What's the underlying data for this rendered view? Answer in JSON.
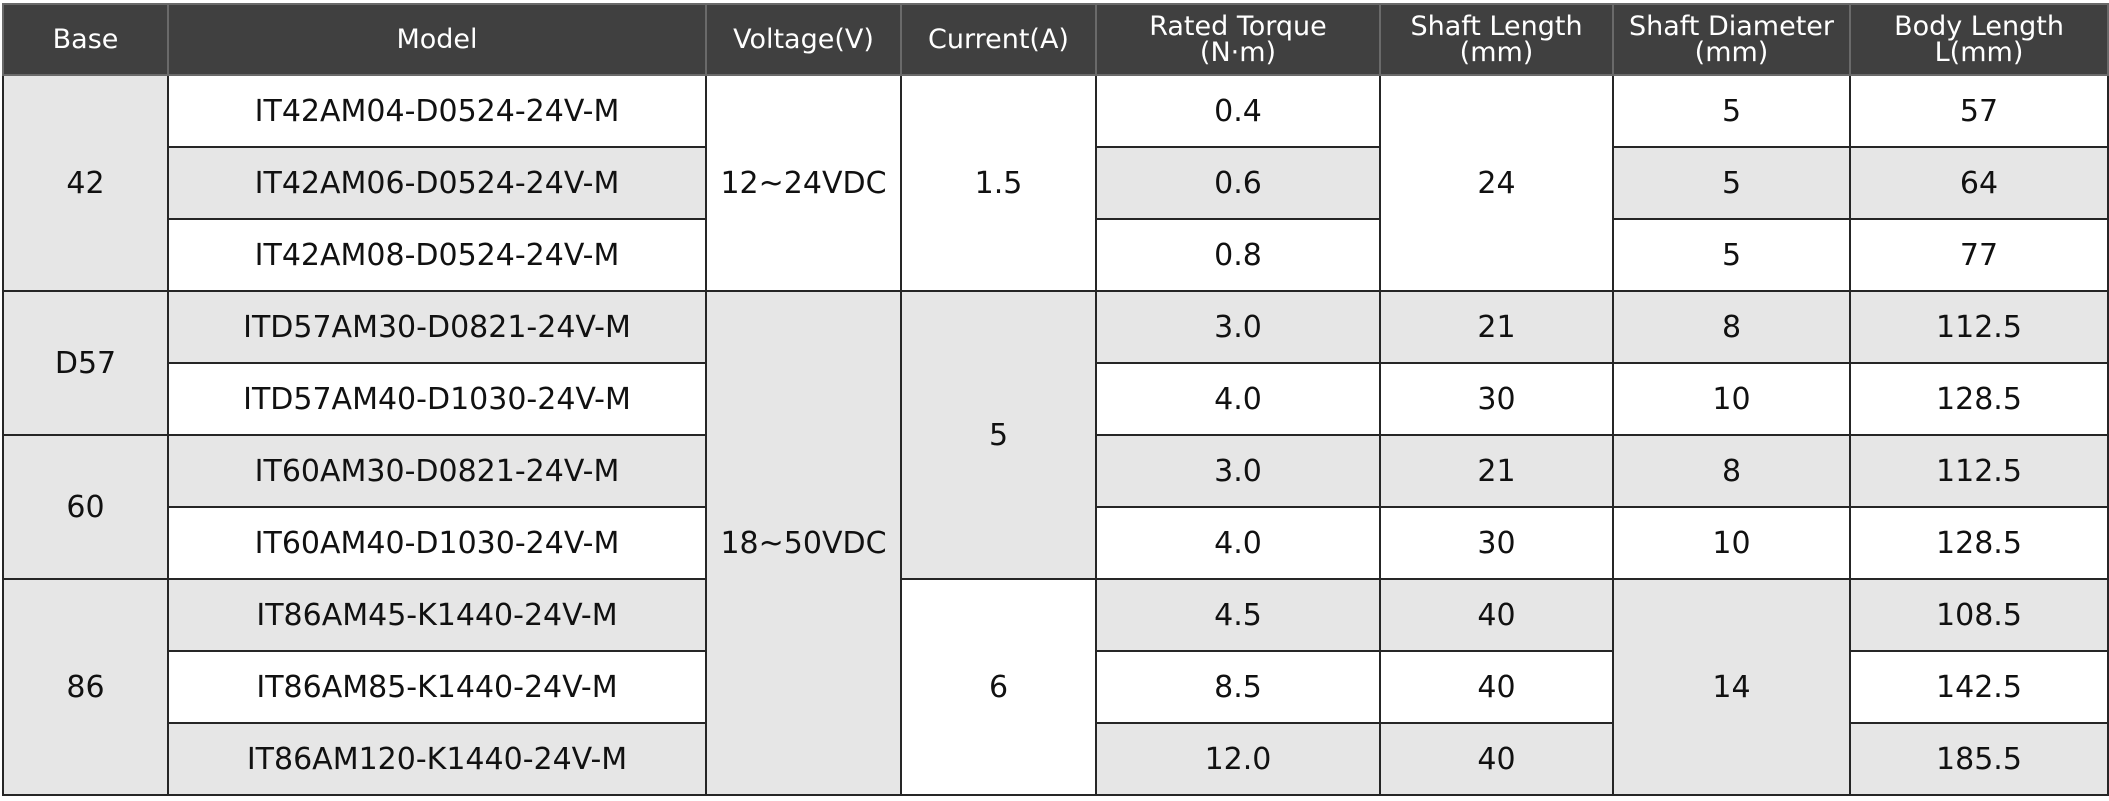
{
  "table": {
    "columns": [
      "Base",
      "Model",
      "Voltage(V)",
      "Current(A)",
      [
        "Rated Torque",
        "(N·m)"
      ],
      [
        "Shaft Length",
        "(mm)"
      ],
      [
        "Shaft Diameter",
        "(mm)"
      ],
      [
        "Body Length",
        "L(mm)"
      ]
    ],
    "rows": [
      [
        "42",
        "IT42AM04-D0524-24V-M",
        "12~24VDC",
        "1.5",
        "0.4",
        "24",
        "5",
        "57"
      ],
      [
        "IT42AM06-D0524-24V-M",
        "0.6",
        "5",
        "64"
      ],
      [
        "IT42AM08-D0524-24V-M",
        "0.8",
        "5",
        "77"
      ],
      [
        "D57",
        "ITD57AM30-D0821-24V-M",
        "18~50VDC",
        "5",
        "3.0",
        "21",
        "8",
        "112.5"
      ],
      [
        "ITD57AM40-D1030-24V-M",
        "4.0",
        "30",
        "10",
        "128.5"
      ],
      [
        "60",
        "IT60AM30-D0821-24V-M",
        "3.0",
        "21",
        "8",
        "112.5"
      ],
      [
        "IT60AM40-D1030-24V-M",
        "4.0",
        "30",
        "10",
        "128.5"
      ],
      [
        "86",
        "IT86AM45-K1440-24V-M",
        "6",
        "4.5",
        "40",
        "14",
        "108.5"
      ],
      [
        "IT86AM85-K1440-24V-M",
        "8.5",
        "40",
        "142.5"
      ],
      [
        "IT86AM120-K1440-24V-M",
        "12.0",
        "40",
        "185.5"
      ]
    ]
  }
}
